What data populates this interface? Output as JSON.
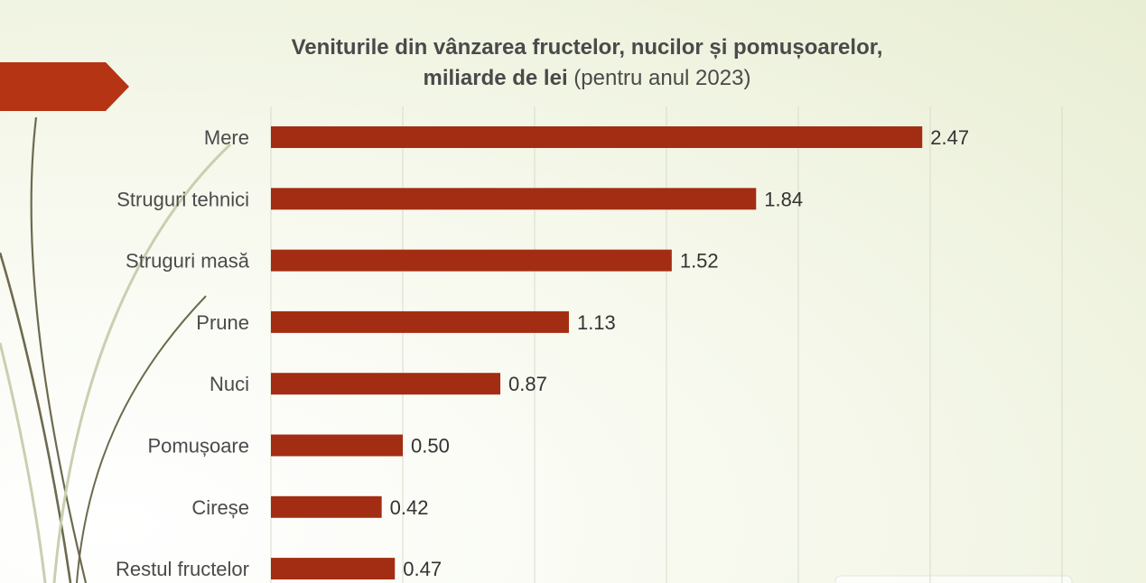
{
  "title_line1": "Veniturile din vânzarea fructelor, nucilor și pomușoarelor,",
  "title_line2_bold": "miliarde de lei",
  "title_line2_rest": "(pentru anul 2023)",
  "colors": {
    "bar": "#a32d12",
    "accent_banner": "#b53414",
    "text": "#4a4a4a",
    "grid": "#d8dccb"
  },
  "chart_data": {
    "type": "bar",
    "orientation": "horizontal",
    "title": "Veniturile din vânzarea fructelor, nucilor și pomușoarelor, miliarde de lei (pentru anul 2023)",
    "categories": [
      "Mere",
      "Struguri tehnici",
      "Struguri masă",
      "Prune",
      "Nuci",
      "Pomușoare",
      "Cireșe",
      "Restul fructelor"
    ],
    "values": [
      2.47,
      1.84,
      1.52,
      1.13,
      0.87,
      0.5,
      0.42,
      0.47
    ],
    "value_labels": [
      "2.47",
      "1.84",
      "1.52",
      "1.13",
      "0.87",
      "0.50",
      "0.42",
      "0.47"
    ],
    "xlim": [
      0,
      3
    ],
    "grid": true,
    "legend": "none"
  }
}
